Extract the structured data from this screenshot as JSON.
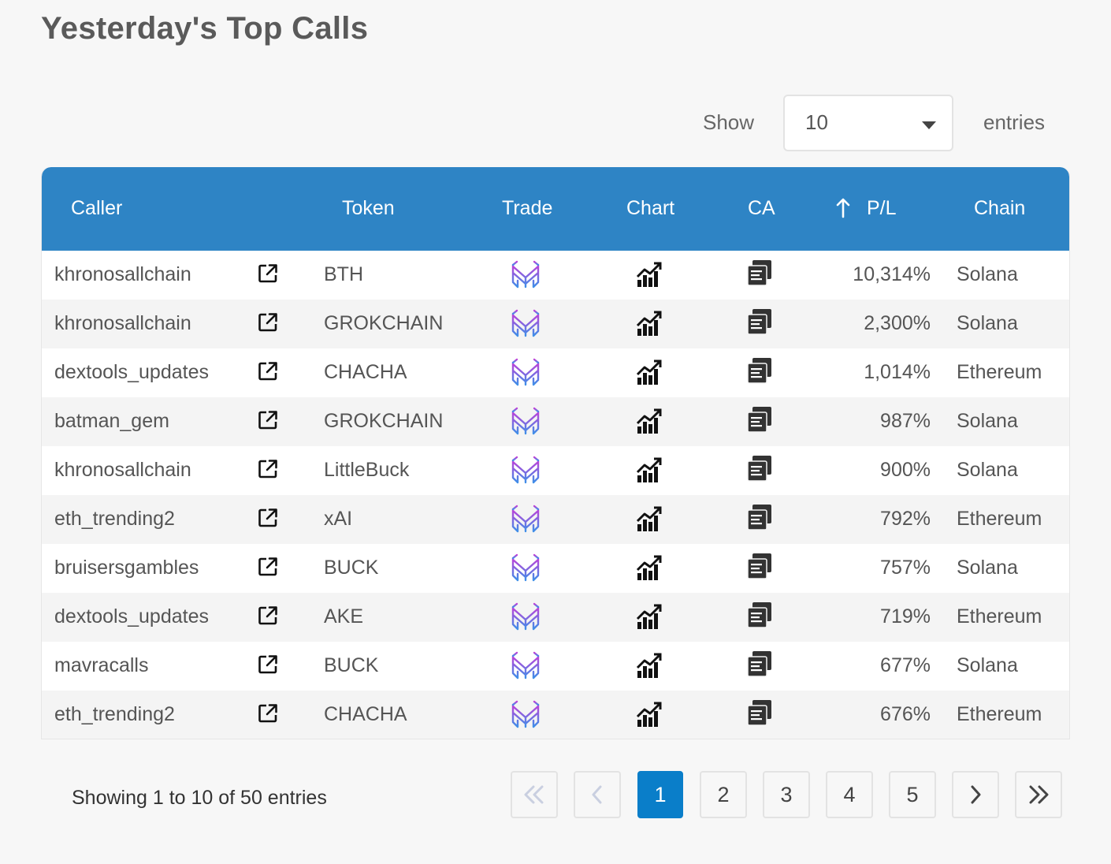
{
  "title": "Yesterday's Top Calls",
  "length_control": {
    "show_label": "Show",
    "value": "10",
    "entries_label": "entries"
  },
  "table": {
    "headers": {
      "caller": "Caller",
      "token": "Token",
      "trade": "Trade",
      "chart": "Chart",
      "ca": "CA",
      "pl": "P/L",
      "chain": "Chain"
    },
    "sort_icon": "arrow-up-icon",
    "rows": [
      {
        "caller": "khronosallchain",
        "token": "BTH",
        "pl": "10,314%",
        "chain": "Solana"
      },
      {
        "caller": "khronosallchain",
        "token": "GROKCHAIN",
        "pl": "2,300%",
        "chain": "Solana"
      },
      {
        "caller": "dextools_updates",
        "token": "CHACHA",
        "pl": "1,014%",
        "chain": "Ethereum"
      },
      {
        "caller": "batman_gem",
        "token": "GROKCHAIN",
        "pl": "987%",
        "chain": "Solana"
      },
      {
        "caller": "khronosallchain",
        "token": "LittleBuck",
        "pl": "900%",
        "chain": "Solana"
      },
      {
        "caller": "eth_trending2",
        "token": "xAI",
        "pl": "792%",
        "chain": "Ethereum"
      },
      {
        "caller": "bruisersgambles",
        "token": "BUCK",
        "pl": "757%",
        "chain": "Solana"
      },
      {
        "caller": "dextools_updates",
        "token": "AKE",
        "pl": "719%",
        "chain": "Ethereum"
      },
      {
        "caller": "mavracalls",
        "token": "BUCK",
        "pl": "677%",
        "chain": "Solana"
      },
      {
        "caller": "eth_trending2",
        "token": "CHACHA",
        "pl": "676%",
        "chain": "Ethereum"
      }
    ]
  },
  "info": "Showing 1 to 10 of 50 entries",
  "pagination": {
    "first_icon": "double-chevron-left-icon",
    "prev_icon": "chevron-left-icon",
    "pages": [
      "1",
      "2",
      "3",
      "4",
      "5"
    ],
    "current": "1",
    "next_icon": "chevron-right-icon",
    "last_icon": "double-chevron-right-icon"
  },
  "colors": {
    "header": "#2e84c5",
    "active_page": "#0a7ec9",
    "trade_icon_top": "#c03fd8",
    "trade_icon_bottom": "#3f8fe8"
  }
}
